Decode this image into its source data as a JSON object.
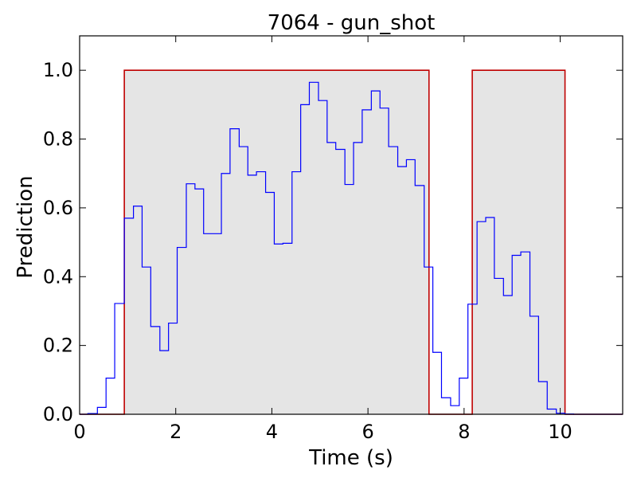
{
  "chart_data": {
    "type": "line",
    "title": "7064 - gun_shot",
    "xlabel": "Time (s)",
    "ylabel": "Prediction",
    "xlim": [
      0,
      11.3
    ],
    "ylim": [
      0,
      1.1
    ],
    "xticks": [
      0,
      2,
      4,
      6,
      8,
      10
    ],
    "yticks": [
      0.0,
      0.2,
      0.4,
      0.6,
      0.8,
      1.0
    ],
    "xtick_labels": [
      "0",
      "2",
      "4",
      "6",
      "8",
      "10"
    ],
    "ytick_labels": [
      "0.0",
      "0.2",
      "0.4",
      "0.6",
      "0.8",
      "1.0"
    ],
    "grid": false,
    "colors": {
      "prediction": "#0000ff",
      "ground_truth": "#bf0000",
      "shade": "#e5e5e5"
    },
    "ground_truth_intervals": [
      [
        0.93,
        7.27
      ],
      [
        8.17,
        10.1
      ]
    ],
    "prediction_step": {
      "x": [
        0,
        0.17,
        0.37,
        0.55,
        0.73,
        0.93,
        1.12,
        1.3,
        1.48,
        1.67,
        1.85,
        2.03,
        2.22,
        2.4,
        2.58,
        2.77,
        2.95,
        3.13,
        3.32,
        3.5,
        3.68,
        3.87,
        4.05,
        4.23,
        4.42,
        4.6,
        4.78,
        4.97,
        5.15,
        5.33,
        5.52,
        5.7,
        5.88,
        6.07,
        6.25,
        6.43,
        6.62,
        6.8,
        6.98,
        7.17,
        7.35,
        7.53,
        7.72,
        7.9,
        8.08,
        8.27,
        8.45,
        8.63,
        8.82,
        9.0,
        9.18,
        9.37,
        9.55,
        9.73,
        9.92,
        10.1,
        10.28,
        11.3
      ],
      "y": [
        0.0,
        0.002,
        0.02,
        0.105,
        0.322,
        0.57,
        0.605,
        0.428,
        0.255,
        0.185,
        0.265,
        0.485,
        0.67,
        0.655,
        0.525,
        0.525,
        0.7,
        0.83,
        0.778,
        0.695,
        0.705,
        0.645,
        0.495,
        0.497,
        0.705,
        0.9,
        0.965,
        0.912,
        0.79,
        0.77,
        0.668,
        0.79,
        0.885,
        0.94,
        0.89,
        0.778,
        0.72,
        0.74,
        0.665,
        0.428,
        0.18,
        0.048,
        0.025,
        0.105,
        0.32,
        0.56,
        0.572,
        0.395,
        0.345,
        0.462,
        0.472,
        0.285,
        0.095,
        0.015,
        0.003,
        0.001,
        0.0,
        0.0
      ]
    }
  }
}
